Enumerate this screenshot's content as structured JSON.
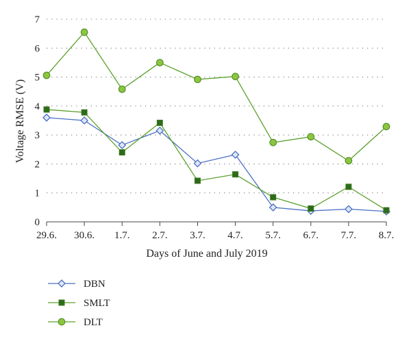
{
  "chart_data": {
    "type": "line",
    "xlabel": "Days of June and July 2019",
    "ylabel": "Voltage RMSE (V)",
    "categories": [
      "29.6.",
      "30.6.",
      "1.7.",
      "2.7.",
      "3.7.",
      "4.7.",
      "5.7.",
      "6.7.",
      "7.7.",
      "8.7."
    ],
    "ylim": [
      0,
      7
    ],
    "yticks": [
      0,
      1,
      2,
      3,
      4,
      5,
      6,
      7
    ],
    "grid": "horizontal dotted",
    "legend_position": "bottom-left",
    "series": [
      {
        "name": "DBN",
        "marker": "diamond",
        "color": "#4a6fc4",
        "marker_fill": "#dfe6f7",
        "values": [
          3.6,
          3.5,
          2.65,
          3.15,
          2.02,
          2.32,
          0.5,
          0.38,
          0.44,
          0.36
        ]
      },
      {
        "name": "SMLT",
        "marker": "square",
        "color": "#5aa02c",
        "marker_fill": "#2d6a1a",
        "values": [
          3.88,
          3.78,
          2.4,
          3.42,
          1.42,
          1.64,
          0.85,
          0.46,
          1.21,
          0.4
        ]
      },
      {
        "name": "DLT",
        "marker": "circle",
        "color": "#5aa02c",
        "marker_fill": "#8cc63f",
        "values": [
          5.06,
          6.55,
          4.58,
          5.5,
          4.92,
          5.02,
          2.74,
          2.94,
          2.11,
          3.29
        ]
      }
    ]
  }
}
